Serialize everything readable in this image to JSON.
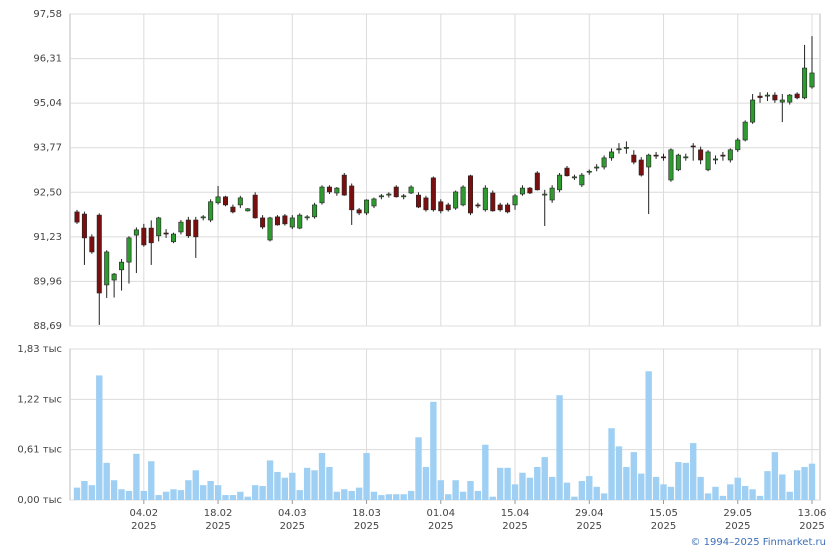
{
  "chart_data": {
    "type": "candlestick",
    "categories": [
      null,
      null,
      null,
      null,
      null,
      null,
      null,
      null,
      null,
      [
        "04.02",
        "2025"
      ],
      null,
      null,
      null,
      null,
      null,
      null,
      null,
      null,
      null,
      [
        "18.02",
        "2025"
      ],
      null,
      null,
      null,
      null,
      null,
      null,
      null,
      null,
      null,
      [
        "04.03",
        "2025"
      ],
      null,
      null,
      null,
      null,
      null,
      null,
      null,
      null,
      null,
      [
        "18.03",
        "2025"
      ],
      null,
      null,
      null,
      null,
      null,
      null,
      null,
      null,
      null,
      [
        "01.04",
        "2025"
      ],
      null,
      null,
      null,
      null,
      null,
      null,
      null,
      null,
      null,
      [
        "15.04",
        "2025"
      ],
      null,
      null,
      null,
      null,
      null,
      null,
      null,
      null,
      null,
      [
        "29.04",
        "2025"
      ],
      null,
      null,
      null,
      null,
      null,
      null,
      null,
      null,
      null,
      [
        "15.05",
        "2025"
      ],
      null,
      null,
      null,
      null,
      null,
      null,
      null,
      null,
      null,
      [
        "29.05",
        "2025"
      ],
      null,
      null,
      null,
      null,
      null,
      null,
      null,
      null,
      null,
      [
        "13.06",
        "2025"
      ]
    ],
    "open": [
      91.94,
      91.88,
      91.23,
      91.85,
      89.86,
      90.0,
      90.29,
      90.51,
      91.28,
      91.48,
      91.48,
      91.26,
      91.34,
      91.09,
      91.37,
      91.71,
      91.71,
      91.77,
      91.71,
      92.2,
      92.37,
      92.08,
      92.14,
      91.97,
      92.42,
      91.77,
      91.14,
      91.8,
      91.83,
      91.51,
      91.48,
      91.77,
      91.8,
      92.2,
      92.65,
      92.48,
      92.99,
      92.68,
      92.0,
      91.91,
      92.11,
      92.37,
      92.42,
      92.65,
      92.37,
      92.48,
      92.42,
      92.34,
      92.91,
      92.23,
      92.14,
      92.05,
      92.14,
      92.97,
      92.14,
      92.0,
      92.48,
      92.14,
      92.14,
      92.14,
      92.45,
      92.62,
      93.05,
      92.42,
      92.28,
      92.57,
      93.19,
      92.91,
      92.71,
      93.08,
      93.19,
      93.22,
      93.48,
      93.71,
      93.76,
      93.56,
      93.42,
      93.22,
      93.56,
      93.51,
      92.85,
      93.14,
      93.48,
      93.82,
      93.71,
      93.14,
      93.42,
      93.56,
      93.42,
      93.71,
      93.99,
      94.5,
      95.24,
      95.24,
      95.27,
      95.07,
      95.07,
      95.3,
      95.19,
      95.5
    ],
    "high": [
      92.0,
      91.95,
      91.3,
      91.9,
      90.85,
      90.2,
      90.6,
      91.25,
      91.5,
      91.6,
      91.7,
      91.8,
      91.45,
      91.35,
      91.71,
      91.8,
      91.8,
      91.85,
      92.3,
      92.68,
      92.4,
      92.15,
      92.4,
      92.05,
      92.5,
      91.85,
      91.8,
      91.85,
      91.88,
      91.85,
      91.9,
      91.85,
      92.2,
      92.7,
      92.7,
      92.65,
      93.05,
      92.75,
      92.05,
      92.3,
      92.35,
      92.45,
      92.5,
      92.7,
      92.45,
      92.7,
      92.5,
      92.4,
      92.95,
      92.3,
      92.2,
      92.55,
      92.7,
      93.0,
      92.2,
      92.7,
      92.55,
      92.2,
      92.2,
      92.45,
      92.7,
      92.65,
      93.1,
      92.57,
      92.7,
      93.05,
      93.25,
      93.0,
      93.05,
      93.15,
      93.3,
      93.55,
      93.75,
      93.9,
      93.95,
      93.7,
      93.5,
      93.6,
      93.65,
      93.6,
      93.75,
      93.6,
      93.6,
      93.9,
      93.8,
      93.7,
      93.55,
      93.65,
      93.75,
      94.05,
      94.55,
      95.3,
      95.35,
      95.35,
      95.35,
      95.3,
      95.3,
      95.35,
      96.7,
      96.95
    ],
    "low": [
      91.6,
      90.43,
      90.75,
      88.72,
      89.49,
      89.5,
      89.7,
      89.9,
      90.2,
      90.95,
      90.43,
      91.1,
      91.2,
      91.05,
      91.3,
      91.2,
      90.63,
      91.7,
      91.65,
      92.15,
      92.1,
      91.9,
      92.05,
      91.95,
      91.75,
      91.45,
      91.1,
      91.55,
      91.55,
      91.45,
      91.45,
      91.7,
      91.75,
      92.15,
      92.45,
      92.4,
      92.4,
      91.57,
      91.85,
      91.85,
      92.05,
      92.3,
      92.35,
      92.35,
      92.3,
      92.45,
      92.05,
      91.95,
      91.95,
      91.9,
      91.95,
      92.0,
      92.1,
      91.85,
      92.05,
      91.95,
      91.95,
      91.95,
      91.9,
      92.0,
      92.4,
      92.45,
      92.55,
      91.54,
      92.2,
      92.5,
      92.95,
      92.85,
      92.65,
      93.0,
      93.1,
      93.15,
      93.4,
      93.6,
      93.6,
      93.3,
      92.95,
      91.88,
      93.45,
      93.4,
      92.8,
      93.1,
      93.4,
      93.4,
      93.3,
      93.1,
      93.3,
      93.4,
      93.35,
      93.65,
      93.95,
      94.45,
      95.05,
      95.1,
      95.05,
      94.5,
      95.0,
      95.15,
      95.15,
      95.45
    ],
    "close": [
      91.65,
      91.2,
      90.8,
      89.63,
      90.8,
      90.17,
      90.51,
      91.2,
      91.43,
      91.0,
      91.06,
      91.77,
      91.31,
      91.31,
      91.65,
      91.26,
      91.23,
      91.8,
      92.23,
      92.37,
      92.14,
      91.94,
      92.34,
      92.03,
      91.77,
      91.51,
      91.77,
      91.57,
      91.6,
      91.77,
      91.85,
      91.8,
      92.14,
      92.65,
      92.51,
      92.62,
      92.42,
      92.0,
      91.91,
      92.28,
      92.31,
      92.4,
      92.45,
      92.37,
      92.4,
      92.65,
      92.08,
      92.0,
      92.0,
      91.97,
      92.0,
      92.51,
      92.65,
      91.91,
      92.11,
      92.62,
      91.97,
      92.0,
      91.94,
      92.4,
      92.62,
      92.48,
      92.57,
      92.45,
      92.62,
      92.99,
      92.97,
      92.94,
      92.99,
      93.1,
      93.22,
      93.48,
      93.65,
      93.74,
      93.78,
      93.36,
      92.99,
      93.56,
      93.53,
      93.48,
      93.71,
      93.56,
      93.51,
      93.8,
      93.42,
      93.65,
      93.45,
      93.53,
      93.71,
      93.99,
      94.5,
      95.13,
      95.2,
      95.27,
      95.13,
      95.13,
      95.27,
      95.19,
      96.04,
      95.9
    ],
    "volume": [
      0.15,
      0.23,
      0.18,
      1.51,
      0.45,
      0.24,
      0.13,
      0.11,
      0.56,
      0.11,
      0.47,
      0.06,
      0.1,
      0.13,
      0.12,
      0.24,
      0.36,
      0.18,
      0.23,
      0.18,
      0.06,
      0.06,
      0.1,
      0.04,
      0.18,
      0.17,
      0.48,
      0.34,
      0.27,
      0.33,
      0.12,
      0.39,
      0.36,
      0.57,
      0.4,
      0.1,
      0.13,
      0.11,
      0.15,
      0.57,
      0.1,
      0.06,
      0.07,
      0.07,
      0.07,
      0.11,
      0.76,
      0.4,
      1.19,
      0.24,
      0.07,
      0.24,
      0.1,
      0.23,
      0.11,
      0.67,
      0.04,
      0.39,
      0.39,
      0.19,
      0.33,
      0.27,
      0.4,
      0.52,
      0.28,
      1.27,
      0.21,
      0.04,
      0.23,
      0.29,
      0.16,
      0.08,
      0.87,
      0.65,
      0.4,
      0.58,
      0.32,
      1.56,
      0.28,
      0.19,
      0.16,
      0.46,
      0.45,
      0.69,
      0.28,
      0.08,
      0.16,
      0.05,
      0.19,
      0.27,
      0.17,
      0.13,
      0.05,
      0.35,
      0.58,
      0.31,
      0.1,
      0.36,
      0.4,
      0.44
    ],
    "up_color": "#2f9a2f",
    "down_color": "#7a0f0f",
    "volume_color": "#9fd0f4",
    "ylim": [
      88.69,
      97.58
    ],
    "yticks": [
      {
        "value": 88.69,
        "label": "88,69"
      },
      {
        "value": 89.96,
        "label": "89,96"
      },
      {
        "value": 91.23,
        "label": "91,23"
      },
      {
        "value": 92.5,
        "label": "92,50"
      },
      {
        "value": 93.77,
        "label": "93,77"
      },
      {
        "value": 95.04,
        "label": "95,04"
      },
      {
        "value": 96.31,
        "label": "96,31"
      },
      {
        "value": 97.58,
        "label": "97,58"
      }
    ],
    "volume_ylim": [
      0,
      1.83
    ],
    "volume_yticks": [
      {
        "value": 0,
        "label": "0,00 тыс"
      },
      {
        "value": 0.61,
        "label": "0,61 тыс"
      },
      {
        "value": 1.22,
        "label": "1,22 тыс"
      },
      {
        "value": 1.83,
        "label": "1,83 тыс"
      }
    ],
    "grid": true,
    "footer": "© 1994–2025 Finmarket.ru"
  }
}
